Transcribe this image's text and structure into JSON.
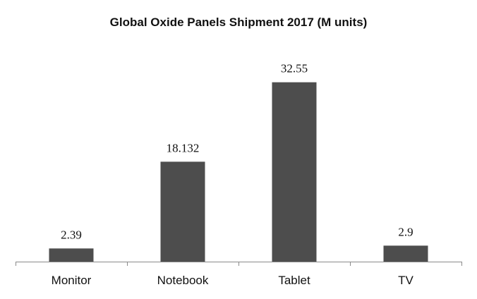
{
  "chart_data": {
    "type": "bar",
    "title": "Global Oxide Panels Shipment 2017 (M units)",
    "categories": [
      "Monitor",
      "Notebook",
      "Tablet",
      "TV"
    ],
    "values": [
      2.39,
      18.132,
      32.55,
      2.9
    ],
    "data_labels": [
      "2.39",
      "18.132",
      "32.55",
      "2.9"
    ],
    "xlabel": "",
    "ylabel": "",
    "ylim": [
      0,
      36
    ],
    "grid": false,
    "legend": "none",
    "bar_color": "#4d4d4d"
  }
}
